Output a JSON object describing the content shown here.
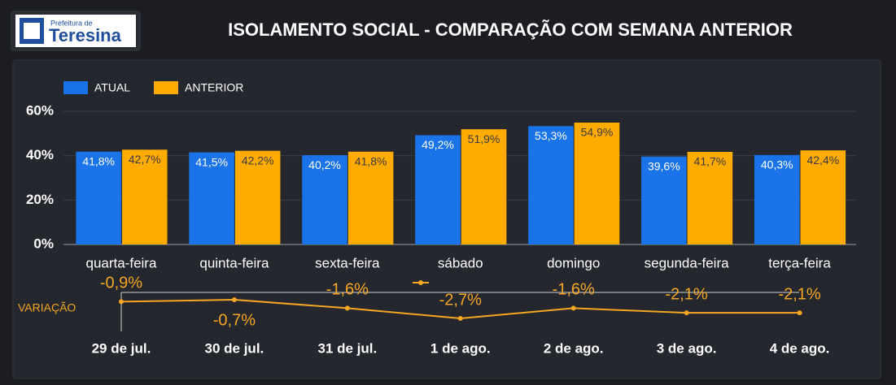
{
  "header": {
    "logo_small": "Prefeitura de",
    "logo_big": "Teresina",
    "title": "ISOLAMENTO SOCIAL - COMPARAÇÃO COM SEMANA ANTERIOR"
  },
  "chart_data": [
    {
      "type": "bar",
      "categories": [
        "quarta-feira",
        "quinta-feira",
        "sexta-feira",
        "sábado",
        "domingo",
        "segunda-feira",
        "terça-feira"
      ],
      "series": [
        {
          "name": "ATUAL",
          "color": "#1a73e8",
          "values": [
            41.8,
            41.5,
            40.2,
            49.2,
            53.3,
            39.6,
            40.3
          ],
          "value_labels": [
            "41,8%",
            "41,5%",
            "40,2%",
            "49,2%",
            "53,3%",
            "39,6%",
            "40,3%"
          ]
        },
        {
          "name": "ANTERIOR",
          "color": "#ffab00",
          "values": [
            42.7,
            42.2,
            41.8,
            51.9,
            54.9,
            41.7,
            42.4
          ],
          "value_labels": [
            "42,7%",
            "42,2%",
            "41,8%",
            "51,9%",
            "54,9%",
            "41,7%",
            "42,4%"
          ]
        }
      ],
      "ylim": [
        0,
        60
      ],
      "yticks": [
        {
          "value": 0,
          "label": "0%"
        },
        {
          "value": 20,
          "label": "20%"
        },
        {
          "value": 40,
          "label": "40%"
        },
        {
          "value": 60,
          "label": "60%"
        }
      ],
      "grid": true,
      "legend": "top-left"
    },
    {
      "type": "line",
      "label": "VARIAÇÃO",
      "color": "#f5a623",
      "categories": [
        "29 de jul.",
        "30 de jul.",
        "31 de jul.",
        "1 de ago.",
        "2 de ago.",
        "3 de ago.",
        "4 de ago."
      ],
      "values": [
        -0.9,
        -0.7,
        -1.6,
        -2.7,
        -1.6,
        -2.1,
        -2.1
      ],
      "value_labels": [
        "-0,9%",
        "-0,7%",
        "-1,6%",
        "-2,7%",
        "-1,6%",
        "-2,1%",
        "-2,1%"
      ],
      "ylim": [
        -3,
        0
      ]
    }
  ]
}
